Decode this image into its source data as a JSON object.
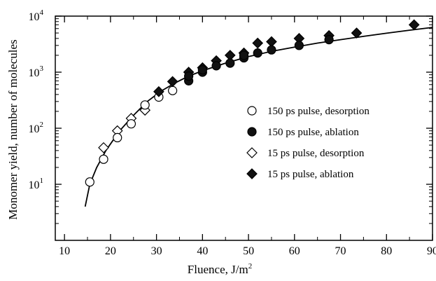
{
  "chart_data": {
    "type": "scatter",
    "title": "",
    "xlabel": "Fluence, J/m",
    "xlabel_sup": "2",
    "ylabel": "Monomer yield, number of molecules",
    "xlim": [
      8,
      90
    ],
    "ylim_log10": [
      0,
      4
    ],
    "yscale": "log",
    "xticks": [
      10,
      20,
      30,
      40,
      50,
      60,
      70,
      80,
      90
    ],
    "yticks": [
      {
        "value": 10,
        "base": "10",
        "exp": "1"
      },
      {
        "value": 100,
        "base": "10",
        "exp": "2"
      },
      {
        "value": 1000,
        "base": "10",
        "exp": "3"
      },
      {
        "value": 10000,
        "base": "10",
        "exp": "4"
      }
    ],
    "legend_position": "right-middle",
    "series": [
      {
        "name": "150 ps pulse, desorption",
        "marker": "circle-open",
        "points": [
          [
            15.5,
            11
          ],
          [
            18.5,
            28
          ],
          [
            21.5,
            68
          ],
          [
            24.5,
            120
          ],
          [
            27.5,
            260
          ],
          [
            30.5,
            360
          ],
          [
            33.5,
            470
          ]
        ]
      },
      {
        "name": "150 ps pulse, ablation",
        "marker": "circle-filled",
        "points": [
          [
            37,
            700
          ],
          [
            37,
            850
          ],
          [
            40,
            1000
          ],
          [
            40,
            1100
          ],
          [
            43,
            1300
          ],
          [
            46,
            1450
          ],
          [
            49,
            1800
          ],
          [
            49,
            2000
          ],
          [
            52,
            2200
          ],
          [
            55,
            2500
          ],
          [
            61,
            3000
          ],
          [
            67.5,
            3800
          ]
        ]
      },
      {
        "name": "15 ps pulse, desorption",
        "marker": "diamond-open",
        "points": [
          [
            18.5,
            45
          ],
          [
            21.5,
            90
          ],
          [
            24.5,
            150
          ],
          [
            27.5,
            210
          ]
        ]
      },
      {
        "name": "15 ps pulse, ablation",
        "marker": "diamond-filled",
        "points": [
          [
            30.5,
            450
          ],
          [
            33.5,
            680
          ],
          [
            37,
            1000
          ],
          [
            40,
            1200
          ],
          [
            43,
            1600
          ],
          [
            46,
            2000
          ],
          [
            49,
            2200
          ],
          [
            52,
            3300
          ],
          [
            55,
            3500
          ],
          [
            61,
            4000
          ],
          [
            67.5,
            4500
          ],
          [
            73.5,
            5000
          ],
          [
            86,
            7000
          ]
        ]
      }
    ],
    "fit_curve": [
      [
        14.5,
        4
      ],
      [
        15.5,
        10
      ],
      [
        17,
        20
      ],
      [
        19,
        40
      ],
      [
        22,
        90
      ],
      [
        25,
        170
      ],
      [
        28,
        300
      ],
      [
        31,
        460
      ],
      [
        34,
        640
      ],
      [
        37,
        850
      ],
      [
        40,
        1060
      ],
      [
        45,
        1450
      ],
      [
        50,
        1900
      ],
      [
        55,
        2350
      ],
      [
        60,
        2800
      ],
      [
        65,
        3300
      ],
      [
        70,
        3800
      ],
      [
        75,
        4350
      ],
      [
        80,
        4950
      ],
      [
        85,
        5600
      ],
      [
        90,
        6300
      ]
    ]
  }
}
